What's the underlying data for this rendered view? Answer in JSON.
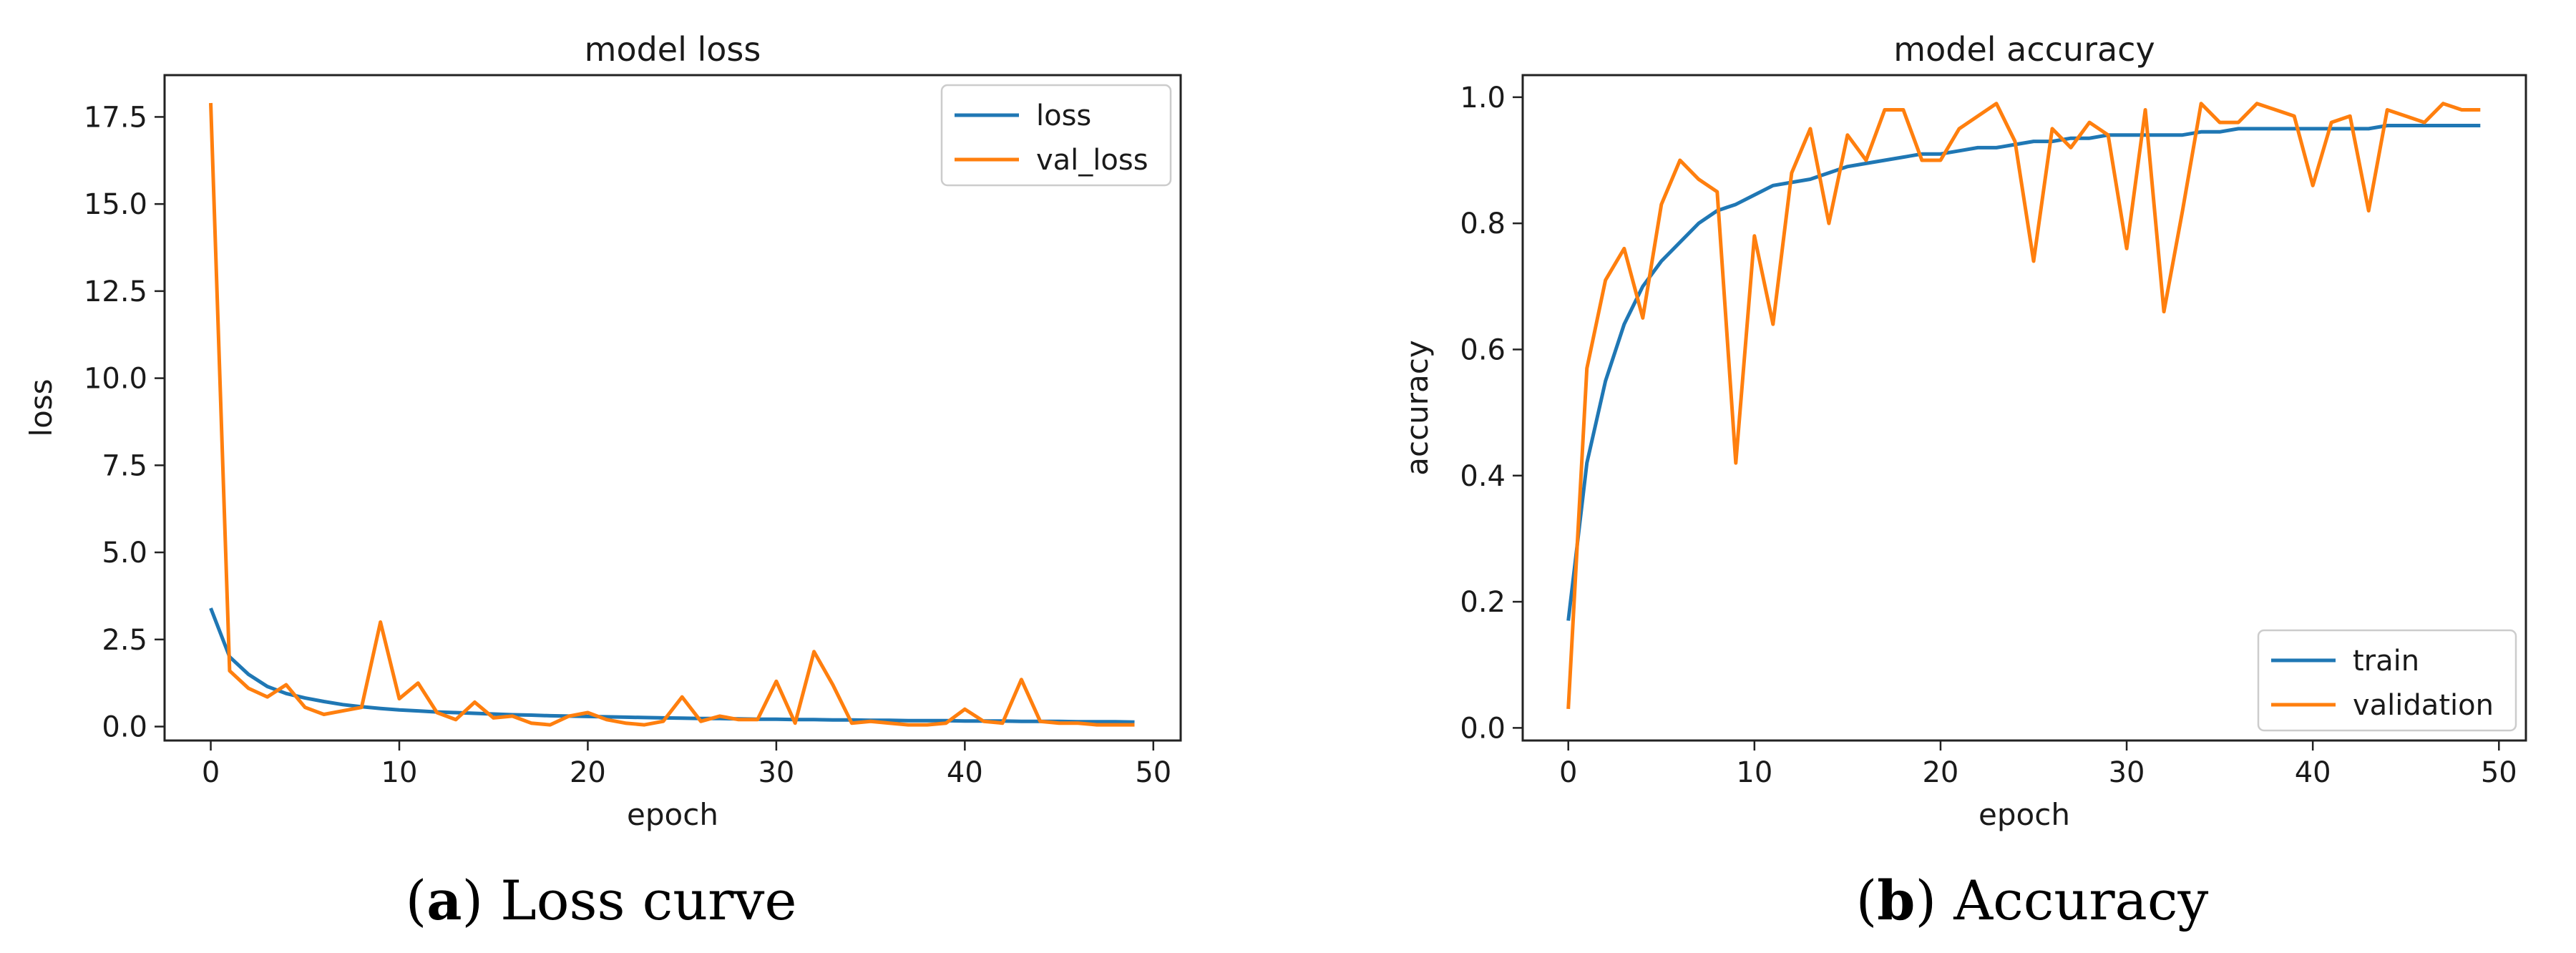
{
  "colors": {
    "blue": "#1f77b4",
    "orange": "#ff7f0e",
    "axis": "#222222"
  },
  "chart_data": [
    {
      "type": "line",
      "title": "model loss",
      "xlabel": "epoch",
      "ylabel": "loss",
      "xlim": [
        -2.45,
        51.45
      ],
      "ylim": [
        -0.4,
        18.7
      ],
      "xticks": [
        0,
        10,
        20,
        30,
        40,
        50
      ],
      "xtick_labels": [
        "0",
        "10",
        "20",
        "30",
        "40",
        "50"
      ],
      "yticks": [
        0,
        2.5,
        5,
        7.5,
        10,
        12.5,
        15,
        17.5
      ],
      "ytick_labels": [
        "0.0",
        "2.5",
        "5.0",
        "7.5",
        "10.0",
        "12.5",
        "15.0",
        "17.5"
      ],
      "legend_position": "top-right",
      "caption": {
        "letter": "a",
        "text": "Loss curve"
      },
      "x": [
        0,
        1,
        2,
        3,
        4,
        5,
        6,
        7,
        8,
        9,
        10,
        11,
        12,
        13,
        14,
        15,
        16,
        17,
        18,
        19,
        20,
        21,
        22,
        23,
        24,
        25,
        26,
        27,
        28,
        29,
        30,
        31,
        32,
        33,
        34,
        35,
        36,
        37,
        38,
        39,
        40,
        41,
        42,
        43,
        44,
        45,
        46,
        47,
        48,
        49
      ],
      "series": [
        {
          "name": "loss",
          "color": "#1f77b4",
          "values": [
            3.4,
            2.0,
            1.5,
            1.15,
            0.95,
            0.82,
            0.72,
            0.63,
            0.57,
            0.52,
            0.48,
            0.45,
            0.42,
            0.4,
            0.38,
            0.36,
            0.34,
            0.33,
            0.31,
            0.3,
            0.29,
            0.28,
            0.27,
            0.26,
            0.25,
            0.24,
            0.23,
            0.23,
            0.22,
            0.21,
            0.21,
            0.2,
            0.2,
            0.19,
            0.19,
            0.18,
            0.18,
            0.17,
            0.17,
            0.17,
            0.16,
            0.16,
            0.16,
            0.15,
            0.15,
            0.15,
            0.14,
            0.14,
            0.14,
            0.13
          ]
        },
        {
          "name": "val_loss",
          "color": "#ff7f0e",
          "values": [
            17.9,
            1.6,
            1.1,
            0.85,
            1.2,
            0.55,
            0.35,
            0.45,
            0.55,
            3.0,
            0.8,
            1.25,
            0.4,
            0.2,
            0.7,
            0.25,
            0.3,
            0.1,
            0.05,
            0.3,
            0.4,
            0.2,
            0.1,
            0.05,
            0.15,
            0.85,
            0.15,
            0.3,
            0.2,
            0.2,
            1.3,
            0.1,
            2.15,
            1.2,
            0.1,
            0.15,
            0.1,
            0.05,
            0.05,
            0.1,
            0.5,
            0.15,
            0.1,
            1.35,
            0.15,
            0.1,
            0.1,
            0.05,
            0.05,
            0.05
          ]
        }
      ]
    },
    {
      "type": "line",
      "title": "model accuracy",
      "xlabel": "epoch",
      "ylabel": "accuracy",
      "xlim": [
        -2.45,
        51.45
      ],
      "ylim": [
        -0.02,
        1.035
      ],
      "xticks": [
        0,
        10,
        20,
        30,
        40,
        50
      ],
      "xtick_labels": [
        "0",
        "10",
        "20",
        "30",
        "40",
        "50"
      ],
      "yticks": [
        0,
        0.2,
        0.4,
        0.6,
        0.8,
        1.0
      ],
      "ytick_labels": [
        "0.0",
        "0.2",
        "0.4",
        "0.6",
        "0.8",
        "1.0"
      ],
      "legend_position": "bottom-right",
      "caption": {
        "letter": "b",
        "text": "Accuracy"
      },
      "x": [
        0,
        1,
        2,
        3,
        4,
        5,
        6,
        7,
        8,
        9,
        10,
        11,
        12,
        13,
        14,
        15,
        16,
        17,
        18,
        19,
        20,
        21,
        22,
        23,
        24,
        25,
        26,
        27,
        28,
        29,
        30,
        31,
        32,
        33,
        34,
        35,
        36,
        37,
        38,
        39,
        40,
        41,
        42,
        43,
        44,
        45,
        46,
        47,
        48,
        49
      ],
      "series": [
        {
          "name": "train",
          "color": "#1f77b4",
          "values": [
            0.17,
            0.42,
            0.55,
            0.64,
            0.7,
            0.74,
            0.77,
            0.8,
            0.82,
            0.83,
            0.845,
            0.86,
            0.865,
            0.87,
            0.88,
            0.89,
            0.895,
            0.9,
            0.905,
            0.91,
            0.91,
            0.915,
            0.92,
            0.92,
            0.925,
            0.93,
            0.93,
            0.935,
            0.935,
            0.94,
            0.94,
            0.94,
            0.94,
            0.94,
            0.945,
            0.945,
            0.95,
            0.95,
            0.95,
            0.95,
            0.95,
            0.95,
            0.95,
            0.95,
            0.955,
            0.955,
            0.955,
            0.955,
            0.955,
            0.955
          ]
        },
        {
          "name": "validation",
          "color": "#ff7f0e",
          "values": [
            0.03,
            0.57,
            0.71,
            0.76,
            0.65,
            0.83,
            0.9,
            0.87,
            0.85,
            0.42,
            0.78,
            0.64,
            0.88,
            0.95,
            0.8,
            0.94,
            0.9,
            0.98,
            0.98,
            0.9,
            0.9,
            0.95,
            0.97,
            0.99,
            0.93,
            0.74,
            0.95,
            0.92,
            0.96,
            0.94,
            0.76,
            0.98,
            0.66,
            0.82,
            0.99,
            0.96,
            0.96,
            0.99,
            0.98,
            0.97,
            0.86,
            0.96,
            0.97,
            0.82,
            0.98,
            0.97,
            0.96,
            0.99,
            0.98,
            0.98
          ]
        }
      ]
    }
  ]
}
